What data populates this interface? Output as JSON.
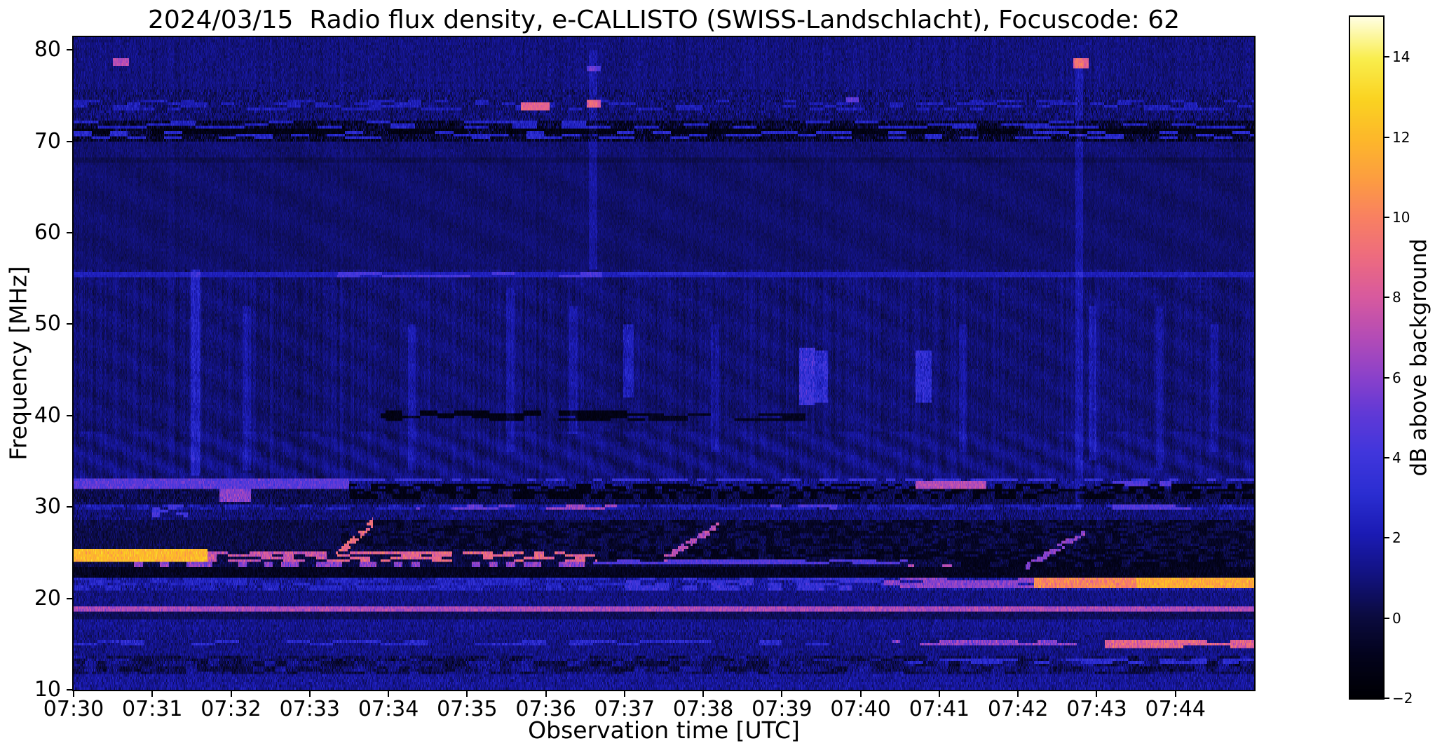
{
  "chart_data": {
    "type": "heatmap",
    "title": "2024/03/15  Radio flux density, e-CALLISTO (SWISS-Landschlacht), Focuscode: 62",
    "xlabel": "Observation time [UTC]",
    "ylabel": "Frequency [MHz]",
    "x_ticks": [
      "07:30",
      "07:31",
      "07:32",
      "07:33",
      "07:34",
      "07:35",
      "07:36",
      "07:37",
      "07:38",
      "07:39",
      "07:40",
      "07:41",
      "07:42",
      "07:43",
      "07:44"
    ],
    "x_range_minutes": [
      0,
      15
    ],
    "y_ticks": [
      10,
      20,
      30,
      40,
      50,
      60,
      70,
      80
    ],
    "ylim": [
      10,
      81.4
    ],
    "colorbar": {
      "label": "dB above background",
      "vmin": -2,
      "vmax": 15,
      "ticks": [
        {
          "v": -2,
          "label": "−2"
        },
        {
          "v": 0,
          "label": "0"
        },
        {
          "v": 2,
          "label": "2"
        },
        {
          "v": 4,
          "label": "4"
        },
        {
          "v": 6,
          "label": "6"
        },
        {
          "v": 8,
          "label": "8"
        },
        {
          "v": 10,
          "label": "10"
        },
        {
          "v": 12,
          "label": "12"
        },
        {
          "v": 14,
          "label": "14"
        }
      ]
    },
    "colormap": [
      [
        0.0,
        "#000004"
      ],
      [
        0.06,
        "#03031c"
      ],
      [
        0.12,
        "#0b0b40"
      ],
      [
        0.18,
        "#121280"
      ],
      [
        0.24,
        "#1b1bb4"
      ],
      [
        0.3,
        "#2b2ed2"
      ],
      [
        0.36,
        "#4136dc"
      ],
      [
        0.42,
        "#6239d6"
      ],
      [
        0.47,
        "#8a41cb"
      ],
      [
        0.53,
        "#b44cb6"
      ],
      [
        0.59,
        "#d85a9e"
      ],
      [
        0.65,
        "#ee6c7e"
      ],
      [
        0.71,
        "#f98260"
      ],
      [
        0.76,
        "#fc9c42"
      ],
      [
        0.82,
        "#fdb72b"
      ],
      [
        0.88,
        "#fad321"
      ],
      [
        0.94,
        "#f9ee4d"
      ],
      [
        1.0,
        "#fffede"
      ]
    ],
    "regions": [
      {
        "f": [
          10,
          11.6
        ],
        "level": 1.5,
        "sigma": 0.9
      },
      {
        "f": [
          11.6,
          13.6
        ],
        "level": 0.6,
        "sigma": 1.0
      },
      {
        "f": [
          13.6,
          16.2
        ],
        "level": 1.1,
        "sigma": 0.8
      },
      {
        "f": [
          16.2,
          17.6
        ],
        "level": 1.3,
        "sigma": 0.8
      },
      {
        "f": [
          17.6,
          18.65
        ],
        "level": 0.4,
        "sigma": 0.5
      },
      {
        "f": [
          18.65,
          19.15
        ],
        "level": 2.0,
        "sigma": 1.0
      },
      {
        "f": [
          19.15,
          20.9
        ],
        "level": 1.1,
        "sigma": 0.7
      },
      {
        "f": [
          20.9,
          22.35
        ],
        "level": 1.6,
        "sigma": 1.2
      },
      {
        "f": [
          22.35,
          23.45
        ],
        "level": -0.9,
        "sigma": 0.6
      },
      {
        "f": [
          23.45,
          23.95
        ],
        "level": 0.0,
        "sigma": 0.8
      },
      {
        "f": [
          23.95,
          25.45
        ],
        "level": 0.0,
        "sigma": 0.8
      },
      {
        "f": [
          25.45,
          28.6
        ],
        "level": 0.15,
        "sigma": 0.7
      },
      {
        "f": [
          28.6,
          29.6
        ],
        "level": 0.9,
        "sigma": 0.9
      },
      {
        "f": [
          29.6,
          30.35
        ],
        "level": 1.2,
        "sigma": 1.1
      },
      {
        "f": [
          30.35,
          31.95
        ],
        "level": 0.2,
        "sigma": 0.9
      },
      {
        "f": [
          31.95,
          33.25
        ],
        "level": 1.2,
        "sigma": 1.0
      },
      {
        "f": [
          33.25,
          38.4
        ],
        "level": 0.95,
        "sigma": 0.5
      },
      {
        "f": [
          38.4,
          56.0
        ],
        "level": 0.8,
        "sigma": 0.5
      },
      {
        "f": [
          56.0,
          67.6
        ],
        "level": 0.7,
        "sigma": 0.35
      },
      {
        "f": [
          67.6,
          68.4
        ],
        "level": 0.35,
        "sigma": 0.3
      },
      {
        "f": [
          68.4,
          70.0
        ],
        "level": 0.8,
        "sigma": 0.45
      },
      {
        "f": [
          70.0,
          72.3
        ],
        "level": -0.5,
        "sigma": 1.5
      },
      {
        "f": [
          72.3,
          75.6
        ],
        "level": 0.8,
        "sigma": 1.0
      },
      {
        "f": [
          75.6,
          81.4
        ],
        "level": 1.0,
        "sigma": 0.6
      }
    ],
    "features": [
      {
        "type": "dark",
        "t": [
          6.6,
          15
        ],
        "f": [
          24.25,
          25.5
        ],
        "level": -1.0,
        "sigma": 0.6,
        "dash": [
          0.1,
          0.55
        ]
      },
      {
        "type": "dark",
        "t": [
          11.2,
          15
        ],
        "f": [
          23.4,
          24.3
        ],
        "level": -1.0,
        "sigma": 0.5,
        "dash": [
          0.12,
          0.6
        ]
      },
      {
        "type": "dark",
        "t": [
          3.4,
          15
        ],
        "f": [
          25.5,
          28.6
        ],
        "level": -0.7,
        "sigma": 0.7,
        "dash": [
          0.1,
          0.5
        ]
      },
      {
        "type": "dark",
        "t": [
          3.5,
          15
        ],
        "f": [
          30.9,
          32.6
        ],
        "level": -1.3,
        "sigma": 0.6,
        "dash": [
          0.09,
          0.55
        ]
      },
      {
        "type": "dark",
        "t": [
          3.9,
          7.3
        ],
        "f": [
          39.3,
          40.6
        ],
        "level": -1.3,
        "sigma": 0.5,
        "dash": [
          0.22,
          0.55
        ]
      },
      {
        "type": "dark",
        "t": [
          7.3,
          9.3
        ],
        "f": [
          39.4,
          40.3
        ],
        "level": -0.9,
        "sigma": 0.5,
        "dash": [
          0.3,
          0.5
        ]
      },
      {
        "type": "dark",
        "t": [
          0,
          15
        ],
        "f": [
          70.9,
          71.35
        ],
        "level": -1.2,
        "sigma": 0.6,
        "dash": [
          0.5,
          0.75
        ]
      },
      {
        "type": "band",
        "t": [
          0,
          15
        ],
        "f": [
          18.68,
          19.12
        ],
        "level": 6.8,
        "var": 1.8
      },
      {
        "type": "band",
        "t": [
          0,
          10.4
        ],
        "f": [
          14.75,
          15.35
        ],
        "level": 2.8,
        "var": 2.0,
        "dash": [
          0.3,
          0.4
        ]
      },
      {
        "type": "band",
        "t": [
          10.4,
          13.1
        ],
        "f": [
          14.75,
          15.35
        ],
        "level": 6.0,
        "var": 2.5,
        "dash": [
          0.25,
          0.6
        ]
      },
      {
        "type": "band",
        "t": [
          13.1,
          15
        ],
        "f": [
          14.7,
          15.4
        ],
        "level": 8.5,
        "var": 2.5,
        "dash": [
          0.3,
          0.75
        ]
      },
      {
        "type": "band",
        "t": [
          10.5,
          15
        ],
        "f": [
          12.8,
          13.4
        ],
        "level": 3.0,
        "var": 1.5,
        "dash": [
          0.2,
          0.5
        ]
      },
      {
        "type": "band",
        "t": [
          0,
          7
        ],
        "f": [
          20.95,
          22.3
        ],
        "level": 2.5,
        "var": 2.0,
        "dash": [
          0.2,
          0.5
        ]
      },
      {
        "type": "band",
        "t": [
          7,
          10.3
        ],
        "f": [
          20.95,
          22.3
        ],
        "level": 3.5,
        "var": 2.0,
        "dash": [
          0.18,
          0.6
        ]
      },
      {
        "type": "band",
        "t": [
          10.3,
          12.2
        ],
        "f": [
          21.0,
          22.3
        ],
        "level": 6.0,
        "var": 2.0,
        "dash": [
          0.3,
          0.7
        ]
      },
      {
        "type": "band",
        "t": [
          12.2,
          15
        ],
        "f": [
          21.1,
          22.35
        ],
        "level": 10.0,
        "var": 2.5
      },
      {
        "type": "band",
        "t": [
          13.5,
          15
        ],
        "f": [
          21.15,
          22.3
        ],
        "level": 11.5,
        "var": 2.0
      },
      {
        "type": "band",
        "t": [
          0,
          1.7
        ],
        "f": [
          24.0,
          25.35
        ],
        "level": 12.0,
        "var": 2.0
      },
      {
        "type": "band",
        "t": [
          1.7,
          3.35
        ],
        "f": [
          24.0,
          25.2
        ],
        "level": 7.5,
        "var": 2.5,
        "dash": [
          0.14,
          0.55
        ]
      },
      {
        "type": "band",
        "t": [
          3.35,
          6.65
        ],
        "f": [
          24.1,
          25.1
        ],
        "level": 8.5,
        "var": 2.5,
        "dash": [
          0.13,
          0.5
        ]
      },
      {
        "type": "band",
        "t": [
          0,
          6.6
        ],
        "f": [
          23.5,
          23.92
        ],
        "level": 6.0,
        "var": 2.5,
        "dash": [
          0.11,
          0.45
        ]
      },
      {
        "type": "band",
        "t": [
          6.6,
          10.6
        ],
        "f": [
          23.75,
          24.25
        ],
        "level": 4.5,
        "var": 1.5,
        "dash": [
          0.3,
          0.8
        ]
      },
      {
        "type": "band",
        "t": [
          10.6,
          11.2
        ],
        "f": [
          23.3,
          23.8
        ],
        "level": 7.0,
        "var": 2.0,
        "dash": [
          0.12,
          0.6
        ]
      },
      {
        "type": "band",
        "t": [
          0,
          15
        ],
        "f": [
          29.65,
          30.3
        ],
        "level": 2.2,
        "var": 1.6,
        "dash": [
          0.16,
          0.55
        ]
      },
      {
        "type": "band",
        "t": [
          4.35,
          5.6
        ],
        "f": [
          29.6,
          30.4
        ],
        "level": 5.0,
        "var": 1.5,
        "dash": [
          0.2,
          0.6
        ]
      },
      {
        "type": "band",
        "t": [
          5.5,
          6.9
        ],
        "f": [
          29.6,
          30.35
        ],
        "level": 6.5,
        "var": 1.8,
        "dash": [
          0.25,
          0.65
        ]
      },
      {
        "type": "band",
        "t": [
          8.85,
          9.7
        ],
        "f": [
          29.6,
          30.3
        ],
        "level": 4.5,
        "var": 1.5,
        "dash": [
          0.2,
          0.6
        ]
      },
      {
        "type": "band",
        "t": [
          13.2,
          14.2
        ],
        "f": [
          29.6,
          30.3
        ],
        "level": 4.5,
        "var": 1.5,
        "dash": [
          0.2,
          0.6
        ]
      },
      {
        "type": "band",
        "t": [
          0,
          3.5
        ],
        "f": [
          31.95,
          33.2
        ],
        "level": 4.8,
        "var": 1.8
      },
      {
        "type": "band",
        "t": [
          3.5,
          15
        ],
        "f": [
          32.78,
          33.2
        ],
        "level": 3.5,
        "var": 1.5,
        "dash": [
          0.12,
          0.6
        ]
      },
      {
        "type": "band",
        "t": [
          10.7,
          11.6
        ],
        "f": [
          32.1,
          32.8
        ],
        "level": 7.0,
        "var": 1.6
      },
      {
        "type": "band",
        "t": [
          13.1,
          14.0
        ],
        "f": [
          32.2,
          32.9
        ],
        "level": 4.5,
        "var": 1.5,
        "dash": [
          0.15,
          0.6
        ]
      },
      {
        "type": "band",
        "t": [
          1.85,
          2.25
        ],
        "f": [
          30.7,
          31.9
        ],
        "level": 6.0,
        "var": 1.8
      },
      {
        "type": "band",
        "t": [
          1.0,
          1.45
        ],
        "f": [
          28.8,
          30.2
        ],
        "level": 4.0,
        "var": 1.5,
        "dash": [
          0.1,
          0.5
        ]
      },
      {
        "type": "band",
        "t": [
          0,
          15
        ],
        "f": [
          55.25,
          55.8
        ],
        "level": 2.3,
        "var": 0.9
      },
      {
        "type": "band",
        "t": [
          3.35,
          6.95
        ],
        "f": [
          55.25,
          55.8
        ],
        "level": 4.2,
        "var": 1.2,
        "dash": [
          0.28,
          0.55
        ]
      },
      {
        "type": "band",
        "t": [
          6.95,
          8.3
        ],
        "f": [
          55.3,
          55.75
        ],
        "level": 3.0,
        "var": 0.9
      },
      {
        "type": "band",
        "t": [
          0,
          15
        ],
        "f": [
          70.2,
          71.0
        ],
        "level": 2.8,
        "var": 1.5,
        "dash": [
          0.23,
          0.33
        ]
      },
      {
        "type": "band",
        "t": [
          0,
          15
        ],
        "f": [
          71.35,
          72.15
        ],
        "level": 2.5,
        "var": 1.5,
        "dash": [
          0.31,
          0.3
        ]
      },
      {
        "type": "band",
        "t": [
          0,
          15
        ],
        "f": [
          73.3,
          74.6
        ],
        "level": 2.2,
        "var": 1.5,
        "dash": [
          0.17,
          0.33
        ]
      },
      {
        "type": "diag",
        "t": [
          3.3,
          3.8
        ],
        "f": [
          24.3,
          28.3
        ],
        "level": 9.0,
        "var": 2.0,
        "w": 0.45,
        "dash": [
          0.07,
          0.6
        ]
      },
      {
        "type": "diag",
        "t": [
          7.5,
          8.2
        ],
        "f": [
          24.3,
          28.0
        ],
        "level": 7.0,
        "var": 2.0,
        "w": 0.4,
        "dash": [
          0.08,
          0.6
        ]
      },
      {
        "type": "diag",
        "t": [
          12.1,
          12.85
        ],
        "f": [
          23.4,
          27.3
        ],
        "level": 6.0,
        "var": 1.8,
        "w": 0.4,
        "dash": [
          0.08,
          0.6
        ]
      },
      {
        "type": "spot",
        "t": [
          5.68,
          6.05
        ],
        "f": [
          73.5,
          74.4
        ],
        "level": 8.5,
        "var": 1.5
      },
      {
        "type": "spot",
        "t": [
          6.52,
          6.7
        ],
        "f": [
          73.6,
          74.5
        ],
        "level": 8.0,
        "var": 1.5
      },
      {
        "type": "spot",
        "t": [
          6.52,
          6.7
        ],
        "f": [
          77.6,
          78.4
        ],
        "level": 4.5,
        "var": 1.2
      },
      {
        "type": "spot",
        "t": [
          0.5,
          0.7
        ],
        "f": [
          78.2,
          79.1
        ],
        "level": 7.0,
        "var": 1.5
      },
      {
        "type": "spot",
        "t": [
          12.7,
          12.9
        ],
        "f": [
          77.9,
          79.2
        ],
        "level": 8.5,
        "var": 1.5
      },
      {
        "type": "spot",
        "t": [
          9.82,
          9.98
        ],
        "f": [
          74.2,
          74.9
        ],
        "level": 5.0,
        "var": 1.2
      },
      {
        "type": "vstreak",
        "t": 1.55,
        "f": [
          33.5,
          56
        ],
        "amp": 1.6,
        "w": 0.06
      },
      {
        "type": "vstreak",
        "t": 9.32,
        "f": [
          41,
          47.5
        ],
        "amp": 2.8,
        "w": 0.1
      },
      {
        "type": "vstreak",
        "t": 9.5,
        "f": [
          41.5,
          47
        ],
        "amp": 2.2,
        "w": 0.08
      },
      {
        "type": "vstreak",
        "t": 10.8,
        "f": [
          41.5,
          47
        ],
        "amp": 2.2,
        "w": 0.1
      },
      {
        "type": "vstreak",
        "t": 7.05,
        "f": [
          42,
          50
        ],
        "amp": 1.5,
        "w": 0.07
      },
      {
        "type": "vstreak",
        "t": 12.78,
        "f": [
          30,
          79
        ],
        "amp": 1.0,
        "w": 0.05
      },
      {
        "type": "vstreak",
        "t": 6.6,
        "f": [
          56,
          80
        ],
        "amp": 0.9,
        "w": 0.05
      },
      {
        "type": "vstreak",
        "t": 12.95,
        "f": [
          35,
          52
        ],
        "amp": 1.2,
        "w": 0.05
      },
      {
        "type": "vstreak",
        "t": 4.3,
        "f": [
          34,
          50
        ],
        "amp": 1.0,
        "w": 0.05
      },
      {
        "type": "vstreak",
        "t": 2.2,
        "f": [
          34,
          52
        ],
        "amp": 0.9,
        "w": 0.05
      },
      {
        "type": "vstreak",
        "t": 5.55,
        "f": [
          36,
          54
        ],
        "amp": 0.9,
        "w": 0.05
      },
      {
        "type": "vstreak",
        "t": 6.35,
        "f": [
          38,
          52
        ],
        "amp": 0.9,
        "w": 0.05
      },
      {
        "type": "vstreak",
        "t": 8.15,
        "f": [
          36,
          50
        ],
        "amp": 0.8,
        "w": 0.05
      },
      {
        "type": "vstreak",
        "t": 11.3,
        "f": [
          36,
          50
        ],
        "amp": 0.8,
        "w": 0.05
      },
      {
        "type": "vstreak",
        "t": 13.8,
        "f": [
          34,
          52
        ],
        "amp": 0.9,
        "w": 0.05
      },
      {
        "type": "vstreak",
        "t": 14.5,
        "f": [
          36,
          50
        ],
        "amp": 0.8,
        "w": 0.05
      }
    ]
  }
}
